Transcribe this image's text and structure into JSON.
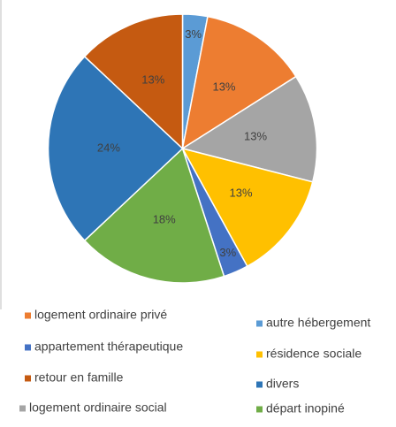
{
  "chart_data": {
    "type": "pie",
    "categories": [
      "autre hébergement",
      "logement ordinaire privé",
      "logement ordinaire social",
      "résidence sociale",
      "appartement thérapeutique",
      "départ inopiné",
      "divers",
      "retour en famille"
    ],
    "values": [
      3,
      13,
      13,
      13,
      3,
      18,
      24,
      13
    ],
    "value_labels": [
      "3%",
      "13%",
      "13%",
      "13%",
      "3%",
      "18%",
      "24%",
      "13%"
    ],
    "colors": [
      "#5b9bd5",
      "#ed7d31",
      "#a5a5a5",
      "#ffc000",
      "#4472c4",
      "#70ad47",
      "#2e75b6",
      "#c55a11"
    ]
  }
}
